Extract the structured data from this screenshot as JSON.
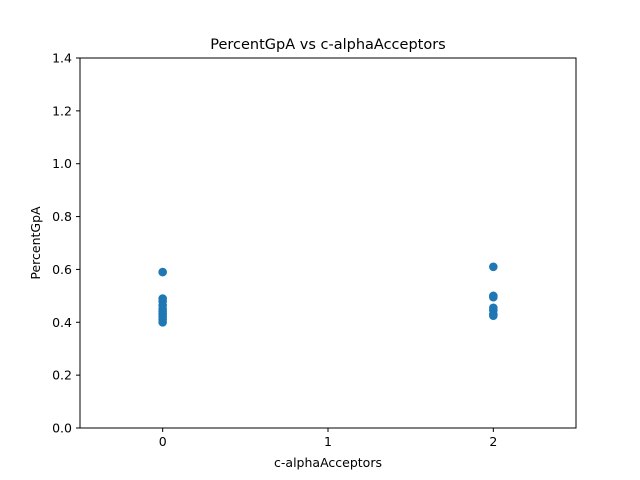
{
  "chart_data": {
    "type": "scatter",
    "title": "PercentGpA vs c-alphaAcceptors",
    "xlabel": "c-alphaAcceptors",
    "ylabel": "PercentGpA",
    "xlim": [
      -0.5,
      2.5
    ],
    "ylim": [
      0.0,
      1.4
    ],
    "x_ticks": [
      "0",
      "1",
      "2"
    ],
    "y_ticks": [
      "0.0",
      "0.2",
      "0.4",
      "0.6",
      "0.8",
      "1.0",
      "1.2",
      "1.4"
    ],
    "grid": false,
    "series": [
      {
        "color": "#1f77b4",
        "points": [
          [
            0,
            0.59
          ],
          [
            0,
            0.49
          ],
          [
            0,
            0.48
          ],
          [
            0,
            0.465
          ],
          [
            0,
            0.45
          ],
          [
            0,
            0.44
          ],
          [
            0,
            0.43
          ],
          [
            0,
            0.42
          ],
          [
            0,
            0.41
          ],
          [
            0,
            0.4
          ],
          [
            2,
            0.61
          ],
          [
            2,
            0.5
          ],
          [
            2,
            0.495
          ],
          [
            2,
            0.455
          ],
          [
            2,
            0.445
          ],
          [
            2,
            0.43
          ],
          [
            2,
            0.425
          ]
        ]
      }
    ]
  }
}
